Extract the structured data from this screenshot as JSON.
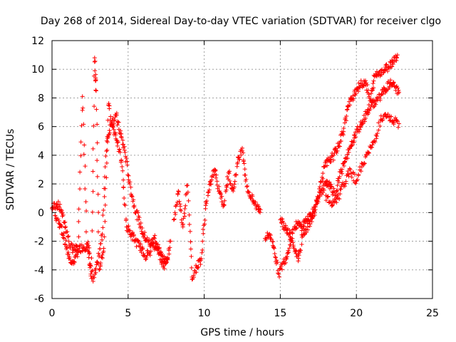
{
  "chart_data": {
    "type": "scatter",
    "title": "Day 268 of 2014, Sidereal Day-to-day VTEC variation (SDTVAR) for receiver clgo",
    "xlabel": "GPS time / hours",
    "ylabel": "SDTVAR / TECUs",
    "xlim": [
      0,
      25
    ],
    "ylim": [
      -6,
      12
    ],
    "x_ticks": [
      0,
      5,
      10,
      15,
      20,
      25
    ],
    "y_ticks": [
      -6,
      -4,
      -2,
      0,
      2,
      4,
      6,
      8,
      10,
      12
    ],
    "grid": true,
    "marker": "+",
    "series": [
      {
        "name": "SDTVAR",
        "color": "#ff0000",
        "tracks": [
          {
            "x": [
              0.0,
              0.3,
              0.6,
              0.9,
              1.2,
              1.5,
              1.8,
              2.1,
              2.4,
              2.7,
              3.0,
              3.3,
              3.6,
              3.9,
              4.2,
              4.5,
              4.8,
              5.1,
              5.4,
              5.7,
              6.0,
              6.3,
              6.6,
              6.9,
              7.2,
              7.5,
              7.8
            ],
            "y": [
              0.3,
              0.6,
              0.2,
              -1.0,
              -2.4,
              -2.6,
              -2.5,
              -2.4,
              -2.3,
              -4.8,
              -3.5,
              -1.5,
              5.0,
              6.2,
              6.8,
              5.5,
              4.2,
              2.0,
              0.5,
              -0.5,
              -1.5,
              -2.0,
              -2.2,
              -2.5,
              -3.0,
              -3.5,
              -2.0
            ]
          },
          {
            "x": [
              0.2,
              0.5,
              0.8,
              1.1,
              1.4,
              1.7,
              2.0,
              2.3,
              2.6,
              2.8,
              2.9,
              3.1,
              3.4,
              3.7,
              4.0,
              4.3,
              4.6,
              4.9,
              5.2,
              5.5,
              5.8,
              6.1,
              6.4,
              6.7,
              7.0,
              7.3,
              7.6
            ],
            "y": [
              -0.2,
              -0.8,
              -1.8,
              -3.2,
              -3.4,
              -2.8,
              8.1,
              -2.2,
              -4.6,
              10.8,
              8.5,
              -4.0,
              -2.5,
              7.5,
              6.0,
              5.0,
              3.2,
              -1.0,
              -1.5,
              -2.0,
              -2.4,
              -3.0,
              -2.8,
              -1.8,
              -2.5,
              -3.8,
              -3.2
            ]
          },
          {
            "x": [
              8.0,
              8.3,
              8.6,
              8.9,
              9.2,
              9.5,
              9.8,
              10.1,
              10.4,
              10.7,
              11.0,
              11.3,
              11.6,
              11.9,
              12.2,
              12.5,
              12.8,
              13.1,
              13.4,
              13.7
            ],
            "y": [
              -0.5,
              1.5,
              -1.0,
              1.9,
              -4.5,
              -3.8,
              -3.2,
              0.5,
              2.0,
              3.0,
              1.5,
              0.5,
              2.8,
              1.5,
              3.5,
              4.5,
              1.8,
              1.0,
              0.5,
              0.2
            ]
          },
          {
            "x": [
              14.0,
              14.3,
              14.6,
              14.9,
              15.2,
              15.5,
              15.8,
              16.1,
              16.4,
              16.7,
              17.0,
              17.3,
              17.6,
              17.9,
              18.2,
              18.5,
              18.8,
              19.1,
              19.4,
              19.7,
              20.0,
              20.3,
              20.6,
              20.9,
              21.2,
              21.5,
              21.8,
              22.1,
              22.4,
              22.7
            ],
            "y": [
              -1.8,
              -1.5,
              -2.5,
              -4.3,
              -3.5,
              -2.8,
              -1.2,
              -0.8,
              -1.0,
              -0.5,
              -0.3,
              0.2,
              1.8,
              3.2,
              3.6,
              4.0,
              4.6,
              5.5,
              7.2,
              8.0,
              8.6,
              8.9,
              9.2,
              7.8,
              9.5,
              9.8,
              9.9,
              10.2,
              10.6,
              11.0
            ]
          },
          {
            "x": [
              15.0,
              15.3,
              15.6,
              15.9,
              16.2,
              16.5,
              16.8,
              17.1,
              17.4,
              17.7,
              18.0,
              18.3,
              18.6,
              18.9,
              19.2,
              19.5,
              19.8,
              20.1,
              20.4,
              20.7,
              21.0,
              21.3,
              21.6,
              21.9,
              22.2,
              22.5,
              22.8
            ],
            "y": [
              -0.5,
              -1.0,
              -1.5,
              -2.5,
              -3.2,
              -1.5,
              -1.0,
              -0.2,
              0.8,
              1.5,
              2.0,
              1.8,
              1.2,
              2.5,
              3.5,
              4.2,
              5.0,
              5.8,
              6.3,
              7.0,
              7.5,
              7.8,
              8.2,
              8.6,
              9.0,
              8.8,
              8.4
            ]
          },
          {
            "x": [
              18.0,
              18.4,
              18.8,
              19.2,
              19.6,
              20.0,
              20.4,
              20.8,
              21.2,
              21.6,
              22.0,
              22.4,
              22.8
            ],
            "y": [
              1.2,
              0.5,
              1.0,
              2.0,
              3.0,
              2.2,
              3.4,
              4.2,
              5.0,
              6.5,
              6.7,
              6.4,
              6.2
            ]
          }
        ]
      }
    ]
  }
}
